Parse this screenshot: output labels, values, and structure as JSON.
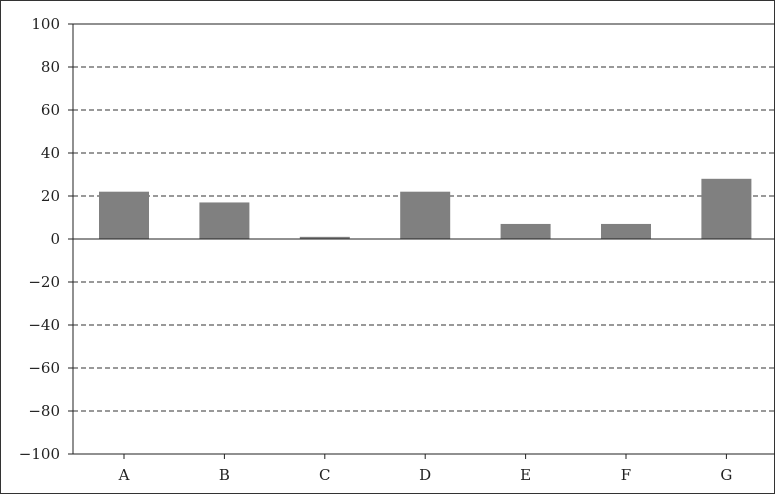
{
  "chart_data": {
    "type": "bar",
    "categories": [
      "A",
      "B",
      "C",
      "D",
      "E",
      "F",
      "G"
    ],
    "values": [
      22,
      17,
      1,
      22,
      7,
      7,
      28
    ],
    "title": "",
    "xlabel": "",
    "ylabel": "",
    "ylim": [
      -100,
      100
    ],
    "yticks": [
      100,
      80,
      60,
      40,
      20,
      0,
      -20,
      -40,
      -60,
      -80,
      -100
    ],
    "ytick_labels": [
      "100",
      "80",
      "60",
      "40",
      "20",
      "0",
      "−20",
      "−40",
      "−60",
      "−80",
      "−100"
    ],
    "grid": "horizontal dashed",
    "legend": "none",
    "bar_color": "#808080"
  }
}
